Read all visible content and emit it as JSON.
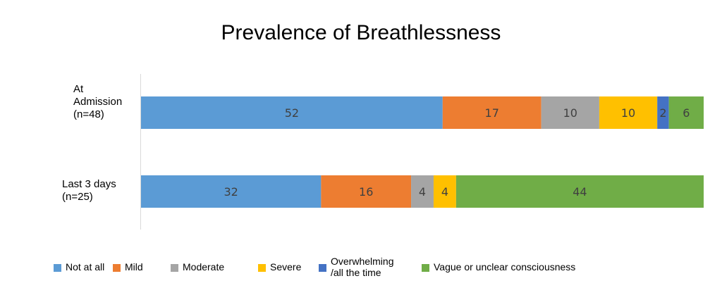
{
  "chart_data": {
    "type": "bar",
    "orientation": "horizontal",
    "stacked": true,
    "title": "Prevalence of Breathlessness",
    "categories": [
      "At\nAdmission\n(n=48)",
      "Last 3 days\n(n=25)"
    ],
    "series": [
      {
        "name": "Not at all",
        "color": "#5B9BD5",
        "values": [
          52,
          32
        ]
      },
      {
        "name": "Mild",
        "color": "#ED7D31",
        "values": [
          17,
          16
        ]
      },
      {
        "name": "Moderate",
        "color": "#A5A5A5",
        "values": [
          10,
          4
        ]
      },
      {
        "name": "Severe",
        "color": "#FFC000",
        "values": [
          10,
          4
        ]
      },
      {
        "name": "Overwhelming\n/all the time",
        "color": "#4472C4",
        "values": [
          2,
          0
        ]
      },
      {
        "name": "Vague or unclear consciousness",
        "color": "#70AD47",
        "values": [
          6,
          44
        ]
      }
    ],
    "legend_position": "bottom",
    "grid": false
  }
}
